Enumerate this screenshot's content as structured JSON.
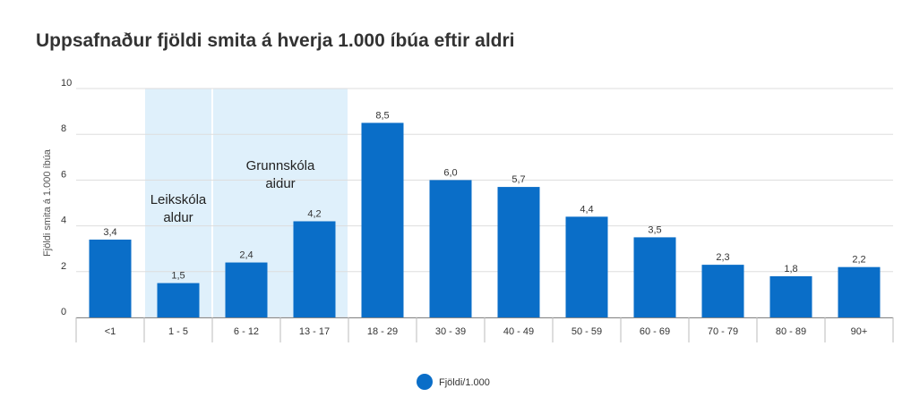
{
  "chart_data": {
    "type": "bar",
    "title": "Uppsafnaður fjöldi smita á hverja 1.000 íbúa eftir aldri",
    "ylabel": "Fjöldi smita á 1.000 íbúa",
    "xlabel": "",
    "ylim": [
      0,
      10
    ],
    "yticks": [
      "0",
      "2",
      "4",
      "6",
      "8",
      "10"
    ],
    "grid": true,
    "legend_position": "bottom-center",
    "categories": [
      "<1",
      "1 - 5",
      "6 - 12",
      "13 - 17",
      "18 - 29",
      "30 - 39",
      "40 - 49",
      "50 - 59",
      "60 - 69",
      "70 - 79",
      "80 - 89",
      "90+"
    ],
    "series": [
      {
        "name": "Fjöldi/1.000",
        "color": "#0a6ec8",
        "values": [
          3.4,
          1.5,
          2.4,
          4.2,
          8.5,
          6.0,
          5.7,
          4.4,
          3.5,
          2.3,
          1.8,
          2.2
        ],
        "labels": [
          "3,4",
          "1,5",
          "2,4",
          "4,2",
          "8,5",
          "6,0",
          "5,7",
          "4,4",
          "3,5",
          "2,3",
          "1,8",
          "2,2"
        ]
      }
    ],
    "bands": [
      {
        "lines": [
          "Leikskóla",
          "aldur"
        ],
        "from": 1,
        "to": 1,
        "color": "#dff0fb"
      },
      {
        "lines": [
          "Grunnskóla",
          "aldur"
        ],
        "from": 2,
        "to": 3,
        "color": "#dff0fb"
      }
    ]
  }
}
